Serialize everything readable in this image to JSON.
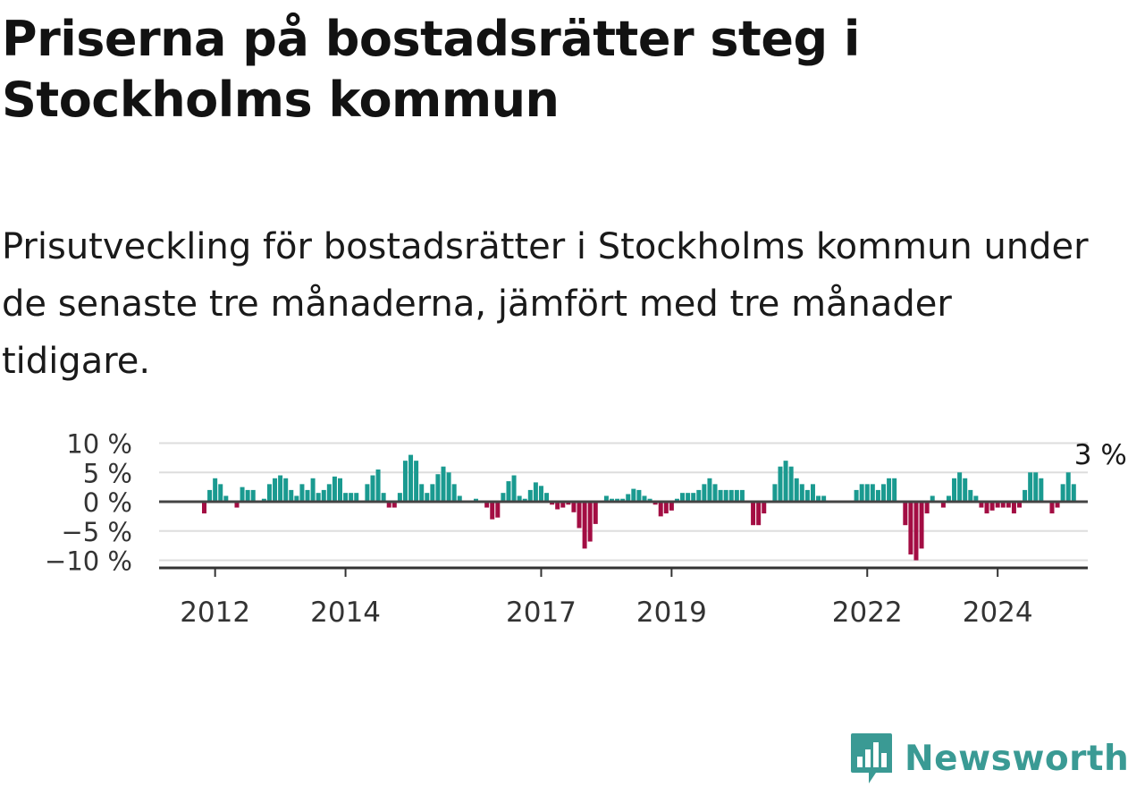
{
  "title": "Priserna på bostadsrätter steg i Stockholms kommun",
  "subtitle": "Prisutveckling för bostadsrätter i Stockholms kommun under de senaste tre månaderna, jämfört med tre månader tidigare.",
  "brand": {
    "name": "Newsworthy",
    "color": "#3a9a94",
    "icon": "bar-chart-speech-bubble-icon"
  },
  "colors": {
    "positive": "#1a9a90",
    "negative": "#a30d43",
    "grid": "#dddddd",
    "zero_line": "#444444",
    "axis": "#333333"
  },
  "chart_data": {
    "type": "bar",
    "title": "",
    "xlabel": "",
    "ylabel": "",
    "x_unit": "month",
    "x_start": "2011-11",
    "y_ticks": [
      10,
      5,
      0,
      -5,
      -10
    ],
    "y_tick_labels": [
      "10 %",
      "5 %",
      "0 %",
      "−5 %",
      "−10 %"
    ],
    "ylim": [
      -11,
      10
    ],
    "x_ticks": [
      "2012",
      "2014",
      "2017",
      "2019",
      "2022",
      "2024"
    ],
    "x_tick_months": [
      "2012-01",
      "2014-01",
      "2017-01",
      "2019-01",
      "2022-01",
      "2024-01"
    ],
    "last_value_label": "3 %",
    "grid": true,
    "values": [
      -2,
      2,
      4,
      3,
      1,
      0,
      -1,
      2.5,
      2,
      2,
      0,
      0.5,
      3,
      4,
      4.5,
      4,
      2,
      1,
      3,
      2,
      4,
      1.5,
      2,
      3,
      4.3,
      4,
      1.5,
      1.5,
      1.5,
      0,
      3,
      4.5,
      5.5,
      1.5,
      -1,
      -1,
      1.5,
      7,
      8,
      7,
      3,
      1.5,
      3,
      4.7,
      6,
      5,
      3,
      1,
      0,
      0,
      0.5,
      0,
      -1,
      -3,
      -2.7,
      1.5,
      3.5,
      4.5,
      1,
      0.5,
      2,
      3.3,
      2.7,
      1.5,
      -0.5,
      -1.3,
      -1,
      -0.5,
      -1.8,
      -4.5,
      -8,
      -6.8,
      -3.8,
      0,
      1,
      0.5,
      0.5,
      0.5,
      1.3,
      2.2,
      2,
      1,
      0.5,
      -0.5,
      -2.5,
      -2,
      -1.5,
      0.5,
      1.5,
      1.5,
      1.5,
      2,
      3,
      4,
      3,
      2,
      2,
      2,
      2,
      2,
      0,
      -4,
      -4,
      -2,
      0,
      3,
      6,
      7,
      6,
      4,
      3,
      2,
      3,
      1,
      1,
      0,
      0,
      0,
      0,
      0,
      2,
      3,
      3,
      3,
      2,
      3,
      4,
      4,
      0,
      -4,
      -9,
      -10,
      -8,
      -2,
      1,
      0,
      -1,
      1,
      4,
      5,
      4,
      2,
      1,
      -1,
      -2,
      -1.5,
      -1,
      -1,
      -1,
      -2,
      -1,
      2,
      5,
      5,
      4,
      0,
      -2,
      -1,
      3,
      5,
      3
    ]
  }
}
